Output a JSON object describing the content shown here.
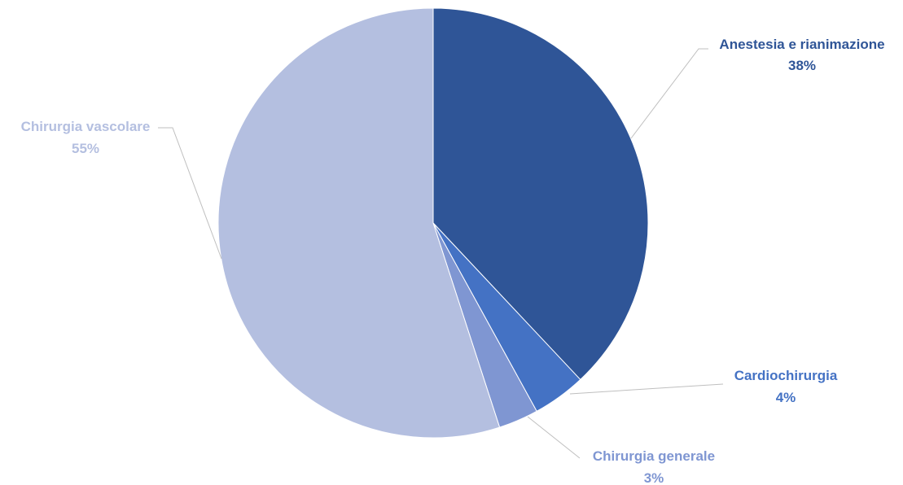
{
  "chart_data": {
    "type": "pie",
    "title": "",
    "slices": [
      {
        "label": "Anestesia e rianimazione",
        "value": 38,
        "value_label": "38%",
        "color": "#2f5597"
      },
      {
        "label": "Cardiochirurgia",
        "value": 4,
        "value_label": "4%",
        "color": "#4472c4"
      },
      {
        "label": "Chirurgia generale",
        "value": 3,
        "value_label": "3%",
        "color": "#7f96d2"
      },
      {
        "label": "Chirurgia vascolare",
        "value": 55,
        "value_label": "55%",
        "color": "#b4bfe0"
      }
    ],
    "start_angle_deg": 0,
    "direction": "clockwise",
    "legend": "none",
    "data_labels": "outside-with-leader-lines",
    "leader_line_color": "#bfbfbf"
  }
}
